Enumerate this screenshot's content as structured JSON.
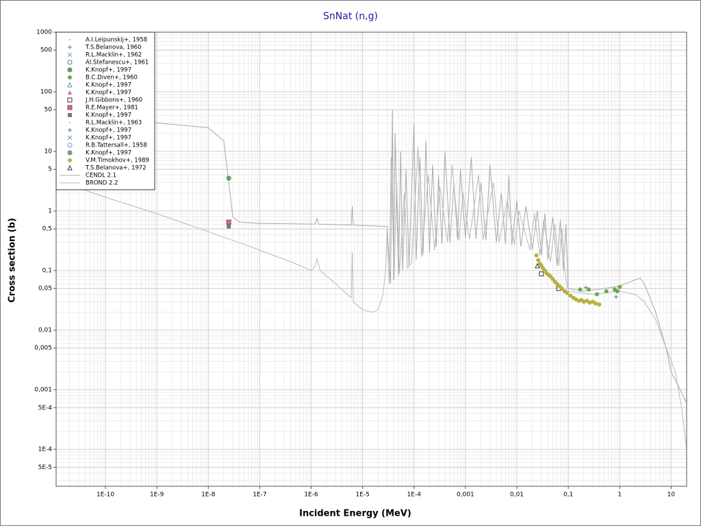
{
  "chart_data": {
    "type": "scatter",
    "title": "SnNat (n,g)",
    "x_label": "Incident Energy (MeV)",
    "y_label": "Cross section (b)",
    "xscale": "log",
    "yscale": "log",
    "grid": true,
    "minor_grid": true,
    "legend": "upper left",
    "xlim": [
      1.1e-11,
      20
    ],
    "ylim": [
      2.4e-05,
      1000
    ],
    "xticks": [
      {
        "value": 1e-10,
        "label": "1E-10"
      },
      {
        "value": 1e-09,
        "label": "1E-9"
      },
      {
        "value": 1e-08,
        "label": "1E-8"
      },
      {
        "value": 1e-07,
        "label": "1E-7"
      },
      {
        "value": 1e-06,
        "label": "1E-6"
      },
      {
        "value": 1e-05,
        "label": "1E-5"
      },
      {
        "value": 0.0001,
        "label": "1E-4"
      },
      {
        "value": 0.001,
        "label": "0,001"
      },
      {
        "value": 0.01,
        "label": "0,01"
      },
      {
        "value": 0.1,
        "label": "0,1"
      },
      1,
      10
    ],
    "yticks": [
      1000,
      500,
      100,
      50,
      10,
      5,
      1,
      {
        "value": 0.5,
        "label": "0,5"
      },
      {
        "value": 0.1,
        "label": "0,1"
      },
      {
        "value": 0.05,
        "label": "0,05"
      },
      {
        "value": 0.01,
        "label": "0,01"
      },
      {
        "value": 0.005,
        "label": "0,005"
      },
      {
        "value": 0.001,
        "label": "0,001"
      },
      {
        "value": 0.0005,
        "label": "5E-4"
      },
      {
        "value": 0.0001,
        "label": "1E-4"
      },
      {
        "value": 5e-05,
        "label": "5E-5"
      }
    ],
    "series": [
      {
        "name": "A.I.Leipunskij+, 1958",
        "marker": "dot",
        "color": "#88aabb",
        "x": [],
        "values": []
      },
      {
        "name": "T.S.Belanova, 1960",
        "marker": "plus",
        "color": "#3a7fc1",
        "x": [
          0.22,
          0.85
        ],
        "values": [
          0.052,
          0.036
        ]
      },
      {
        "name": "R.L.Macklin+, 1962",
        "marker": "x",
        "color": "#8899aa",
        "x": [],
        "values": []
      },
      {
        "name": "Al.Stefanescu+, 1961",
        "marker": "circle",
        "color": "#4a7fa0",
        "x": [],
        "values": []
      },
      {
        "name": "K.Knopf+, 1997",
        "marker": "circle-x",
        "color": "#4a8a4a",
        "x": [
          2.5e-08
        ],
        "values": [
          3.55
        ]
      },
      {
        "name": "B.C.Diven+, 1960",
        "marker": "filled-circle",
        "color": "#6aa84f",
        "x": [
          0.17,
          0.25,
          0.36,
          0.55,
          0.8,
          0.9,
          1.0
        ],
        "values": [
          0.048,
          0.048,
          0.04,
          0.045,
          0.048,
          0.045,
          0.053
        ]
      },
      {
        "name": "K.Knopf+, 1997",
        "marker": "triangle",
        "color": "#5a8fd0",
        "x": [],
        "values": []
      },
      {
        "name": "K.Knopf+, 1997",
        "marker": "filled-triangle",
        "color": "#d06a8a",
        "x": [],
        "values": []
      },
      {
        "name": "J.H.Gibbons+, 1960",
        "marker": "square",
        "color": "#333333",
        "x": [
          0.03,
          0.065
        ],
        "values": [
          0.088,
          0.05
        ]
      },
      {
        "name": "R.E.Mayer+, 1981",
        "marker": "square-x",
        "color": "#a0305a",
        "x": [
          2.5e-08
        ],
        "values": [
          0.65
        ]
      },
      {
        "name": "K.Knopf+, 1997",
        "marker": "filled-square",
        "color": "#777777",
        "x": [
          2.5e-08
        ],
        "values": [
          0.55
        ]
      },
      {
        "name": "R.L.Macklin+, 1963",
        "marker": "dot",
        "color": "#aaaaaa",
        "x": [],
        "values": []
      },
      {
        "name": "K.Knopf+, 1997",
        "marker": "plus",
        "color": "#5a5a9a",
        "x": [],
        "values": []
      },
      {
        "name": "K.Knopf+, 1997",
        "marker": "x",
        "color": "#6a9a9a",
        "x": [],
        "values": []
      },
      {
        "name": "R.B.Tattersall+, 1958",
        "marker": "circle",
        "color": "#6a9ac0",
        "x": [],
        "values": []
      },
      {
        "name": "K.Knopf+, 1997",
        "marker": "circle-x",
        "color": "#5a8a6a",
        "x": [],
        "values": []
      },
      {
        "name": "V.M.Timokhov+, 1989",
        "marker": "filled-circle",
        "color": "#b8b040",
        "x": [
          0.024,
          0.026,
          0.028,
          0.03,
          0.032,
          0.035,
          0.038,
          0.041,
          0.045,
          0.05,
          0.055,
          0.06,
          0.067,
          0.075,
          0.085,
          0.095,
          0.11,
          0.125,
          0.14,
          0.16,
          0.18,
          0.2,
          0.23,
          0.26,
          0.3,
          0.34,
          0.4
        ],
        "values": [
          0.18,
          0.15,
          0.13,
          0.12,
          0.11,
          0.1,
          0.09,
          0.085,
          0.08,
          0.072,
          0.065,
          0.06,
          0.055,
          0.05,
          0.045,
          0.042,
          0.038,
          0.035,
          0.033,
          0.031,
          0.032,
          0.03,
          0.031,
          0.029,
          0.03,
          0.028,
          0.027
        ]
      },
      {
        "name": "T.S.Belanova+, 1972",
        "marker": "triangle",
        "color": "#333344",
        "x": [
          0.025
        ],
        "values": [
          0.12
        ]
      },
      {
        "name": "CENDL 2.1",
        "style": "line",
        "color": "#a8a8a8",
        "x": [
          1.1e-11,
          1e-09,
          1e-08,
          2e-08,
          2.5e-08,
          3e-08,
          4e-08,
          1e-07,
          1.2e-06,
          1.3e-06,
          1.4e-06,
          6e-06,
          6.3e-06,
          6.6e-06,
          3e-05,
          3.5e-05,
          3.8e-05,
          4e-05,
          4.3e-05,
          5e-05,
          5.5e-05,
          6e-05,
          7e-05,
          8e-05,
          0.0001,
          0.00011,
          0.00013,
          0.00015,
          0.00017,
          0.0002,
          0.00023,
          0.00027,
          0.0003,
          0.00035,
          0.0004,
          0.0005,
          0.0006,
          0.0007,
          0.0008,
          0.001,
          0.0013,
          0.0016,
          0.002,
          0.0025,
          0.003,
          0.004,
          0.005,
          0.006,
          0.007,
          0.008,
          0.01,
          0.012,
          0.015,
          0.02,
          0.025,
          0.03,
          0.035,
          0.04,
          0.05,
          0.06,
          0.07,
          0.08,
          0.09,
          0.1,
          0.2,
          0.5,
          1,
          2,
          2.5,
          3,
          5,
          8,
          10,
          15,
          20
        ],
        "values": [
          33,
          30,
          25,
          15,
          3,
          0.8,
          0.65,
          0.62,
          0.6,
          0.75,
          0.6,
          0.58,
          1.2,
          0.58,
          0.55,
          0.06,
          50,
          0.07,
          20,
          0.08,
          10,
          0.1,
          5,
          0.12,
          30,
          0.15,
          8,
          0.18,
          15,
          0.2,
          6,
          0.25,
          4,
          0.28,
          10,
          0.3,
          3,
          0.33,
          5,
          0.35,
          8,
          0.34,
          3,
          0.32,
          6,
          0.3,
          2,
          0.28,
          4,
          0.27,
          1.5,
          0.25,
          1.2,
          0.22,
          1,
          0.18,
          0.9,
          0.15,
          0.8,
          0.12,
          0.7,
          0.1,
          0.6,
          0.05,
          0.045,
          0.05,
          0.055,
          0.07,
          0.075,
          0.06,
          0.02,
          0.005,
          0.002,
          0.001,
          0.0006
        ]
      },
      {
        "name": "BROND 2.2",
        "style": "line",
        "color": "#b8b8b8",
        "x": [
          1.1e-11,
          1e-10,
          1e-09,
          1e-08,
          1e-07,
          5e-07,
          1e-06,
          1.2e-06,
          1.3e-06,
          1.5e-06,
          3e-06,
          5e-06,
          6e-06,
          6.3e-06,
          6.6e-06,
          1e-05,
          1.5e-05,
          2e-05,
          2.5e-05,
          2.8e-05,
          3e-05,
          3.3e-05,
          3.6e-05,
          4.1e-05,
          4.6e-05,
          5.2e-05,
          6.5e-05,
          7.5e-05,
          9e-05,
          0.00012,
          0.00014,
          0.00019,
          0.00025,
          0.00032,
          0.00045,
          0.00055,
          0.00075,
          0.0009,
          0.0012,
          0.0018,
          0.0022,
          0.0035,
          0.0045,
          0.0065,
          0.009,
          0.011,
          0.018,
          0.022,
          0.028,
          0.033,
          0.045,
          0.055,
          0.065,
          0.075,
          0.085,
          0.1,
          0.3,
          1,
          2,
          3,
          5,
          8,
          12,
          16,
          20
        ],
        "values": [
          3.3,
          1.7,
          0.9,
          0.45,
          0.22,
          0.13,
          0.1,
          0.12,
          0.16,
          0.1,
          0.06,
          0.04,
          0.035,
          0.2,
          0.03,
          0.022,
          0.02,
          0.022,
          0.04,
          0.1,
          0.5,
          0.06,
          8,
          0.07,
          3,
          0.09,
          2,
          0.11,
          0.14,
          12,
          0.17,
          4,
          0.22,
          2.5,
          0.3,
          6,
          0.32,
          2,
          0.34,
          4,
          0.33,
          3,
          0.3,
          1.5,
          0.27,
          1,
          0.22,
          0.9,
          0.18,
          0.7,
          0.14,
          0.6,
          0.12,
          0.5,
          0.1,
          0.045,
          0.04,
          0.045,
          0.04,
          0.03,
          0.015,
          0.005,
          0.002,
          0.0005,
          0.0001
        ]
      }
    ]
  }
}
